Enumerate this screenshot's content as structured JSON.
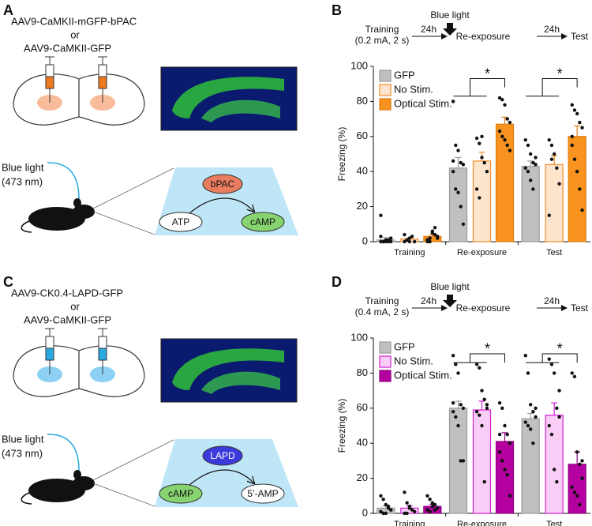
{
  "panels": {
    "a": {
      "letter": "A",
      "vector_1": "AAV9-CaMKII-mGFP-bPAC",
      "or": "or",
      "vector_2": "AAV9-CaMKII-GFP",
      "light": "Blue light",
      "wavelength": "(473 nm)",
      "enzyme": "bPAC",
      "substrate": "ATP",
      "product": "cAMP"
    },
    "c": {
      "letter": "C",
      "vector_1": "AAV9-CK0.4-LAPD-GFP",
      "or": "or",
      "vector_2": "AAV9-CaMKII-GFP",
      "light": "Blue light",
      "wavelength": "(473 nm)",
      "enzyme": "LAPD",
      "substrate": "cAMP",
      "product": "5’-AMP"
    }
  },
  "chart_data": [
    {
      "type": "bar",
      "panel": "B",
      "timeline": {
        "start": "Training",
        "start_note": "(0.2 mA, 2 s)",
        "interval_1": "24h",
        "stimulus": "Blue light",
        "middle": "Re-exposure",
        "interval_2": "24h",
        "end": "Test"
      },
      "ylabel": "Freezing (%)",
      "ylim": [
        0,
        100
      ],
      "yticks": [
        0,
        20,
        40,
        60,
        80,
        100
      ],
      "categories": [
        "Training",
        "Re-exposure",
        "Test"
      ],
      "annotations": [
        "*",
        "*"
      ],
      "series": [
        {
          "name": "GFP",
          "color": "#c0c0c0",
          "edge": "#9a9a9a",
          "values": [
            1,
            42,
            43
          ],
          "errors": [
            1.3,
            6,
            3
          ],
          "points": [
            [
              0,
              0,
              1,
              0,
              2,
              15,
              0,
              0,
              1,
              0,
              3
            ],
            [
              80,
              55,
              52,
              45,
              44,
              40,
              30,
              28,
              20,
              10,
              46
            ],
            [
              58,
              55,
              50,
              45,
              44,
              42,
              40,
              35,
              30,
              48
            ]
          ]
        },
        {
          "name": "No Stim.",
          "color": "#fde4cc",
          "edge": "#f28c28",
          "values": [
            1.5,
            46,
            44
          ],
          "errors": [
            0.6,
            5,
            5
          ],
          "points": [
            [
              0,
              1,
              2,
              3,
              0,
              4,
              1,
              0
            ],
            [
              59,
              56,
              48,
              45,
              40,
              30,
              25,
              60
            ],
            [
              58,
              55,
              50,
              42,
              33,
              15,
              47
            ]
          ]
        },
        {
          "name": "Optical Stim.",
          "color": "#f7931e",
          "edge": "#e07b10",
          "values": [
            3,
            67,
            60
          ],
          "errors": [
            1,
            4,
            6
          ],
          "points": [
            [
              0,
              2,
              5,
              8,
              3,
              1,
              0,
              6,
              4,
              2
            ],
            [
              82,
              81,
              78,
              70,
              68,
              63,
              60,
              58,
              55,
              52
            ],
            [
              78,
              75,
              73,
              68,
              65,
              55,
              47,
              40,
              30,
              18,
              60
            ]
          ]
        }
      ]
    },
    {
      "type": "bar",
      "panel": "D",
      "timeline": {
        "start": "Training",
        "start_note": "(0.4 mA, 2 s)",
        "interval_1": "24h",
        "stimulus": "Blue light",
        "middle": "Re-exposure",
        "interval_2": "24h",
        "end": "Test"
      },
      "ylabel": "Freezing (%)",
      "ylim": [
        0,
        100
      ],
      "yticks": [
        0,
        20,
        40,
        60,
        80,
        100
      ],
      "categories": [
        "Training",
        "Re-exposure",
        "Test"
      ],
      "annotations": [
        "*",
        "*"
      ],
      "series": [
        {
          "name": "GFP",
          "color": "#c0c0c0",
          "edge": "#9a9a9a",
          "values": [
            3,
            60,
            54
          ],
          "errors": [
            1.2,
            4,
            3
          ],
          "points": [
            [
              10,
              8,
              5,
              3,
              2,
              1,
              0,
              0,
              4,
              2
            ],
            [
              90,
              85,
              80,
              62,
              60,
              58,
              55,
              50,
              30,
              30,
              63
            ],
            [
              90,
              80,
              62,
              58,
              55,
              52,
              50,
              48,
              40,
              60
            ]
          ]
        },
        {
          "name": "No Stim.",
          "color": "#f9cdf6",
          "edge": "#d21fd2",
          "values": [
            3,
            59,
            56
          ],
          "errors": [
            1.3,
            5,
            7
          ],
          "points": [
            [
              12,
              6,
              3,
              2,
              1,
              0,
              0,
              4
            ],
            [
              85,
              83,
              70,
              65,
              60,
              58,
              56,
              50,
              18,
              62
            ],
            [
              88,
              85,
              80,
              60,
              55,
              50,
              45,
              25,
              18,
              70
            ]
          ]
        },
        {
          "name": "Optical Stim.",
          "color": "#b3009f",
          "edge": "#8f0080",
          "values": [
            4,
            41,
            28
          ],
          "errors": [
            1.2,
            5,
            7
          ],
          "points": [
            [
              10,
              8,
              6,
              5,
              3,
              2,
              1,
              4,
              2
            ],
            [
              63,
              60,
              50,
              45,
              40,
              35,
              30,
              25,
              22,
              10,
              45
            ],
            [
              80,
              78,
              35,
              28,
              20,
              15,
              12,
              10,
              5,
              30
            ]
          ]
        }
      ]
    }
  ]
}
